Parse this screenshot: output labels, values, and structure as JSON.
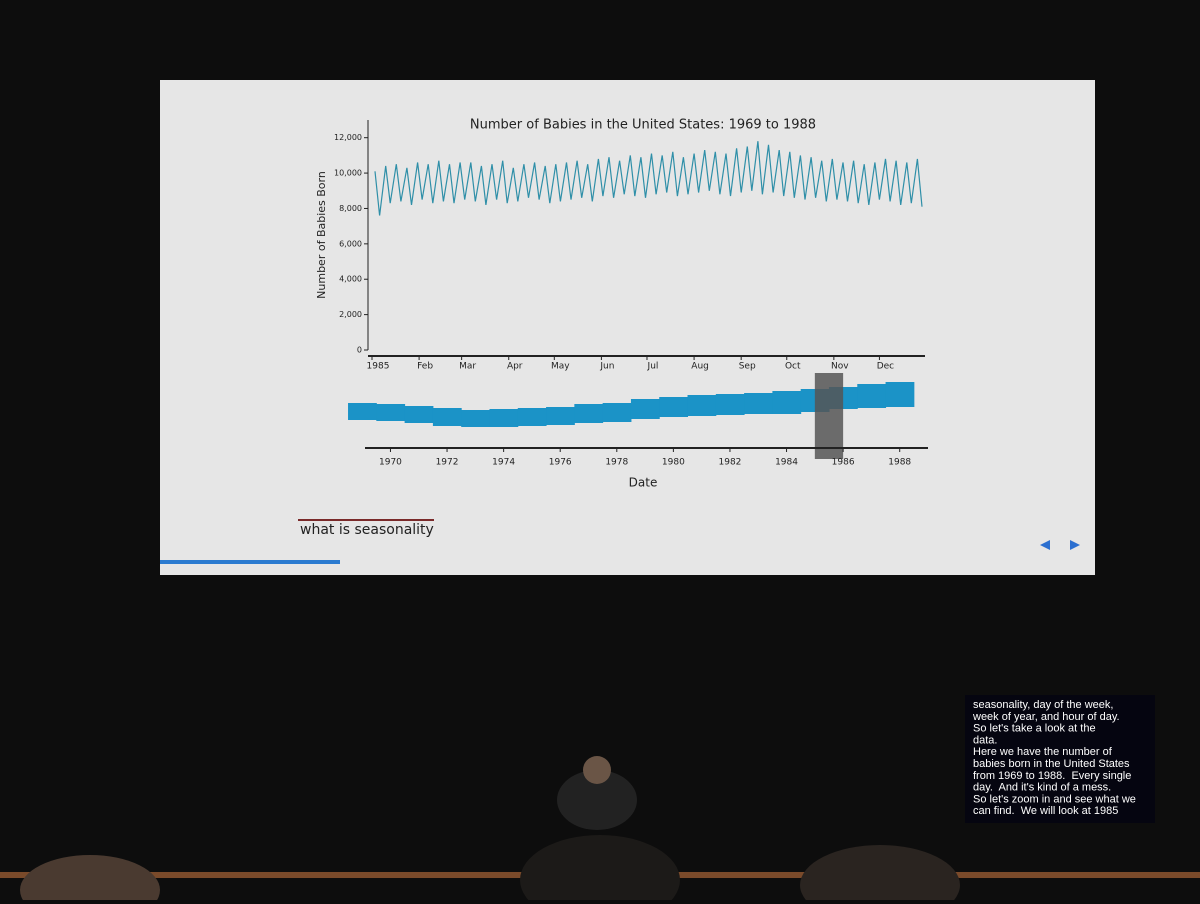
{
  "slide": {
    "heading": "what is seasonality"
  },
  "chart_data": [
    {
      "type": "line",
      "title": "Number of Babies in the United States: 1969 to 1988",
      "y_label": "Number of Babies Born",
      "x": [
        3,
        6,
        10,
        13,
        17,
        20,
        24,
        27,
        31,
        34,
        38,
        41,
        45,
        48,
        52,
        55,
        59,
        62,
        66,
        69,
        73,
        76,
        80,
        83,
        87,
        90,
        94,
        97,
        101,
        104,
        108,
        111,
        115,
        118,
        122,
        125,
        129,
        132,
        136,
        139,
        143,
        146,
        150,
        153,
        157,
        160,
        164,
        167,
        171,
        174,
        178,
        181,
        185,
        188,
        192,
        195,
        199,
        202,
        206,
        209,
        213,
        216,
        220,
        223,
        227,
        230,
        234,
        237,
        241,
        244,
        248,
        251,
        255,
        258,
        262,
        265,
        269,
        272,
        276,
        279,
        283,
        286,
        290,
        293,
        297,
        300,
        304,
        307,
        311,
        314,
        318,
        321,
        325,
        328,
        332,
        335,
        339,
        342,
        346,
        349,
        353,
        356,
        360,
        363
      ],
      "series": [
        {
          "color": "#2f8fa8",
          "values": [
            10100,
            7600,
            10400,
            8300,
            10500,
            8400,
            10300,
            8200,
            10600,
            8500,
            10500,
            8300,
            10700,
            8400,
            10500,
            8300,
            10600,
            8500,
            10600,
            8400,
            10400,
            8200,
            10500,
            8500,
            10700,
            8300,
            10300,
            8400,
            10500,
            8600,
            10600,
            8500,
            10400,
            8300,
            10500,
            8400,
            10600,
            8500,
            10700,
            8600,
            10500,
            8400,
            10800,
            8700,
            10900,
            8600,
            10700,
            8800,
            11000,
            8700,
            10900,
            8600,
            11100,
            8800,
            11000,
            8900,
            11200,
            8700,
            10900,
            8800,
            11100,
            8900,
            11300,
            9000,
            11200,
            8800,
            11100,
            8700,
            11400,
            8900,
            11500,
            9000,
            11800,
            8800,
            11600,
            8900,
            11300,
            8700,
            11200,
            8600,
            11000,
            8500,
            10900,
            8600,
            10700,
            8400,
            10800,
            8500,
            10600,
            8400,
            10700,
            8300,
            10500,
            8200,
            10600,
            8500,
            10800,
            8400,
            10700,
            8200,
            10600,
            8300,
            10800,
            8100
          ]
        }
      ],
      "xlim": [
        1,
        365
      ],
      "xticks": [
        {
          "value": 1,
          "label": "1985"
        },
        {
          "value": 32,
          "label": "Feb"
        },
        {
          "value": 60,
          "label": "Mar"
        },
        {
          "value": 91,
          "label": "Apr"
        },
        {
          "value": 121,
          "label": "May"
        },
        {
          "value": 152,
          "label": "Jun"
        },
        {
          "value": 182,
          "label": "Jul"
        },
        {
          "value": 213,
          "label": "Aug"
        },
        {
          "value": 244,
          "label": "Sep"
        },
        {
          "value": 274,
          "label": "Oct"
        },
        {
          "value": 305,
          "label": "Nov"
        },
        {
          "value": 335,
          "label": "Dec"
        }
      ],
      "ylim": [
        0,
        13000
      ],
      "yticks": [
        0,
        {
          "value": 2000,
          "label": "2,000"
        },
        {
          "value": 4000,
          "label": "4,000"
        },
        {
          "value": 6000,
          "label": "6,000"
        },
        {
          "value": 8000,
          "label": "8,000"
        },
        {
          "value": 10000,
          "label": "10,000"
        },
        {
          "value": 12000,
          "label": "12,000"
        }
      ]
    },
    {
      "type": "area",
      "x_label": "Date",
      "x": [
        1969,
        1970,
        1971,
        1972,
        1973,
        1974,
        1975,
        1976,
        1977,
        1978,
        1979,
        1980,
        1981,
        1982,
        1983,
        1984,
        1985,
        1986,
        1987,
        1988
      ],
      "lower": [
        8000,
        7900,
        7700,
        7400,
        7300,
        7300,
        7400,
        7500,
        7700,
        7800,
        8100,
        8300,
        8400,
        8500,
        8600,
        8600,
        8800,
        9100,
        9200,
        9300
      ],
      "upper": [
        9700,
        9600,
        9400,
        9200,
        9000,
        9100,
        9200,
        9300,
        9600,
        9700,
        10100,
        10300,
        10500,
        10600,
        10700,
        10900,
        11100,
        11300,
        11600,
        11800
      ],
      "color": "#1b93c7",
      "brush": [
        1985,
        1986
      ],
      "brush_color": "#555555",
      "xlim": [
        1969.1,
        1989
      ],
      "xticks": [
        1970,
        1972,
        1974,
        1976,
        1978,
        1980,
        1982,
        1984,
        1986,
        1988
      ],
      "ylim": [
        6000,
        13000
      ]
    }
  ],
  "captions": {
    "lines": [
      "seasonality, day of the week,",
      "week of year, and hour of day.",
      "So let's take a look at the",
      "data.",
      "Here we have the number of",
      "babies born in the United States",
      "from 1969 to 1988.  Every single",
      "day.  And it's kind of a mess.",
      "So let's zoom in and see what we",
      "can find.  We will look at 1985"
    ]
  }
}
